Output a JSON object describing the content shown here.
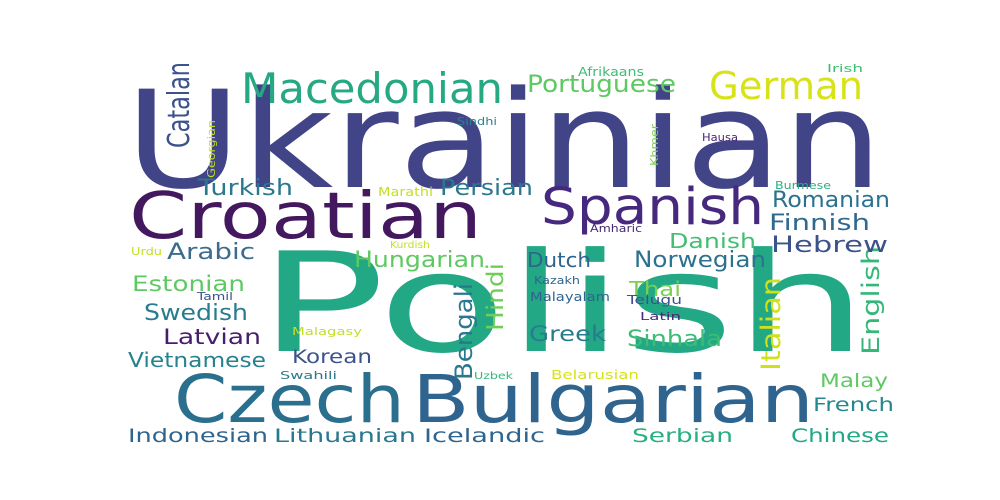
{
  "word_cloud": {
    "words": [
      {
        "text": "Ukrainian",
        "color": "#414487"
      },
      {
        "text": "Polish",
        "color": "#22a884"
      },
      {
        "text": "Croatian",
        "color": "#44185f"
      },
      {
        "text": "Czech",
        "color": "#2a6f8e"
      },
      {
        "text": "Bulgarian",
        "color": "#2f648e"
      },
      {
        "text": "Spanish",
        "color": "#46287d"
      },
      {
        "text": "Macedonian",
        "color": "#26a983"
      },
      {
        "text": "German",
        "color": "#d8e219"
      },
      {
        "text": "Portuguese",
        "color": "#5ec962"
      },
      {
        "text": "Catalan",
        "color": "#3b528b"
      },
      {
        "text": "Italian",
        "color": "#d0e11c"
      },
      {
        "text": "English",
        "color": "#35b779"
      },
      {
        "text": "Bengali",
        "color": "#2a788e"
      },
      {
        "text": "Hindi",
        "color": "#6ece58"
      },
      {
        "text": "Turkish",
        "color": "#2a788e"
      },
      {
        "text": "Persian",
        "color": "#2a788e"
      },
      {
        "text": "Romanian",
        "color": "#2c728e"
      },
      {
        "text": "Finnish",
        "color": "#31688e"
      },
      {
        "text": "Hebrew",
        "color": "#3b528b"
      },
      {
        "text": "Arabic",
        "color": "#3b6c8e"
      },
      {
        "text": "Hungarian",
        "color": "#5ec962"
      },
      {
        "text": "Dutch",
        "color": "#2f648e"
      },
      {
        "text": "Danish",
        "color": "#42be71"
      },
      {
        "text": "Norwegian",
        "color": "#2c728e"
      },
      {
        "text": "Estonian",
        "color": "#5ec962"
      },
      {
        "text": "Thai",
        "color": "#7ad151"
      },
      {
        "text": "Swedish",
        "color": "#287c8e"
      },
      {
        "text": "Latvian",
        "color": "#481c6e"
      },
      {
        "text": "Greek",
        "color": "#287c8e"
      },
      {
        "text": "Sinhala",
        "color": "#3dbc74"
      },
      {
        "text": "Vietnamese",
        "color": "#26828e"
      },
      {
        "text": "Korean",
        "color": "#3b528b"
      },
      {
        "text": "Malay",
        "color": "#5ec962"
      },
      {
        "text": "French",
        "color": "#23898e"
      },
      {
        "text": "Indonesian",
        "color": "#2f648e"
      },
      {
        "text": "Lithuanian",
        "color": "#2a788e"
      },
      {
        "text": "Icelandic",
        "color": "#2f648e"
      },
      {
        "text": "Serbian",
        "color": "#29af7f"
      },
      {
        "text": "Chinese",
        "color": "#22a884"
      },
      {
        "text": "Afrikaans",
        "color": "#3dbc74"
      },
      {
        "text": "Irish",
        "color": "#3dbc74"
      },
      {
        "text": "Georgian",
        "color": "#c2df23"
      },
      {
        "text": "Sindhi",
        "color": "#26828e"
      },
      {
        "text": "Khmer",
        "color": "#7ad151"
      },
      {
        "text": "Hausa",
        "color": "#482878"
      },
      {
        "text": "Marathi",
        "color": "#c2df23"
      },
      {
        "text": "Burmese",
        "color": "#29af7f"
      },
      {
        "text": "Amharic",
        "color": "#482878"
      },
      {
        "text": "Urdu",
        "color": "#c2df23"
      },
      {
        "text": "Kurdish",
        "color": "#c2df23"
      },
      {
        "text": "Kazakh",
        "color": "#2f648e"
      },
      {
        "text": "Tamil",
        "color": "#3b528b"
      },
      {
        "text": "Malayalam",
        "color": "#2f648e"
      },
      {
        "text": "Telugu",
        "color": "#3b528b"
      },
      {
        "text": "Latin",
        "color": "#482878"
      },
      {
        "text": "Malagasy",
        "color": "#c2df23"
      },
      {
        "text": "Swahili",
        "color": "#2a788e"
      },
      {
        "text": "Uzbek",
        "color": "#35b779"
      },
      {
        "text": "Belarusian",
        "color": "#d8e219"
      }
    ]
  }
}
